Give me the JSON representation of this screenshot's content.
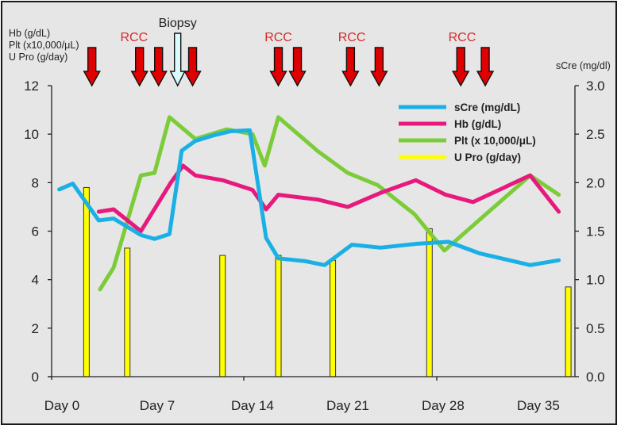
{
  "chart_data": {
    "type": "line",
    "title": "",
    "left_axis": {
      "label_lines": [
        "Hb (g/dL)",
        "Plt  (x10,000/μL)",
        "U Pro (g/day)"
      ],
      "ticks": [
        0,
        2,
        4,
        6,
        8,
        10,
        12
      ],
      "ylim": [
        0,
        12
      ]
    },
    "right_axis": {
      "label": "sCre (mg/dl)",
      "ticks": [
        "0.0",
        "0.5",
        "1.0",
        "1.5",
        "2.0",
        "2.5",
        "3.0"
      ],
      "ylim": [
        0,
        3.0
      ]
    },
    "x_axis": {
      "tick_labels": [
        "Day 0",
        "Day 7",
        "Day 14",
        "Day 21",
        "Day 28",
        "Day 35"
      ],
      "tick_days": [
        0,
        7,
        14,
        21,
        28,
        35
      ],
      "xlim": [
        -0.8,
        37.5
      ]
    },
    "legend": [
      {
        "name": "sCre  (mg/dL)",
        "color": "#1ab0e6"
      },
      {
        "name": "Hb  (g/dL)",
        "color": "#e8197c"
      },
      {
        "name": "Plt   (x 10,000/μL)",
        "color": "#7ccc3a"
      },
      {
        "name": "U Pro (g/day)",
        "color": "#ffff00"
      }
    ],
    "series": [
      {
        "name": "sCre (mg/dL)",
        "axis": "right",
        "color": "#1ab0e6",
        "points": [
          [
            -0.2,
            1.93
          ],
          [
            0.8,
            1.99
          ],
          [
            2.7,
            1.61
          ],
          [
            3.8,
            1.63
          ],
          [
            5.8,
            1.46
          ],
          [
            6.8,
            1.42
          ],
          [
            7.9,
            1.47
          ],
          [
            8.8,
            2.33
          ],
          [
            9.8,
            2.43
          ],
          [
            11.2,
            2.49
          ],
          [
            12.4,
            2.53
          ],
          [
            13.8,
            2.54
          ],
          [
            15.0,
            1.43
          ],
          [
            15.9,
            1.22
          ],
          [
            17.9,
            1.19
          ],
          [
            19.3,
            1.15
          ],
          [
            21.3,
            1.36
          ],
          [
            23.4,
            1.33
          ],
          [
            26.1,
            1.37
          ],
          [
            28.4,
            1.39
          ],
          [
            30.7,
            1.27
          ],
          [
            34.4,
            1.15
          ],
          [
            36.5,
            1.2
          ]
        ]
      },
      {
        "name": "Hb (g/dL)",
        "axis": "left",
        "color": "#e8197c",
        "points": [
          [
            2.7,
            6.8
          ],
          [
            3.8,
            6.9
          ],
          [
            5.8,
            6.0
          ],
          [
            8.0,
            8.0
          ],
          [
            8.9,
            8.7
          ],
          [
            9.8,
            8.3
          ],
          [
            11.8,
            8.1
          ],
          [
            14.0,
            7.7
          ],
          [
            15.0,
            6.9
          ],
          [
            15.9,
            7.5
          ],
          [
            18.8,
            7.3
          ],
          [
            21.0,
            7.0
          ],
          [
            23.5,
            7.6
          ],
          [
            26.0,
            8.1
          ],
          [
            28.2,
            7.5
          ],
          [
            30.2,
            7.2
          ],
          [
            34.4,
            8.3
          ],
          [
            36.5,
            6.8
          ]
        ]
      },
      {
        "name": "Plt (x 10,000/μL)",
        "axis": "left",
        "color": "#7ccc3a",
        "points": [
          [
            2.8,
            3.6
          ],
          [
            3.8,
            4.5
          ],
          [
            5.8,
            8.3
          ],
          [
            6.8,
            8.4
          ],
          [
            7.9,
            10.7
          ],
          [
            9.8,
            9.8
          ],
          [
            12.1,
            10.2
          ],
          [
            14.0,
            10.0
          ],
          [
            14.9,
            8.7
          ],
          [
            15.9,
            10.7
          ],
          [
            18.8,
            9.3
          ],
          [
            21.0,
            8.4
          ],
          [
            23.2,
            7.9
          ],
          [
            25.9,
            6.7
          ],
          [
            28.1,
            5.2
          ],
          [
            34.4,
            8.3
          ],
          [
            36.5,
            7.5
          ]
        ]
      },
      {
        "name": "U Pro (g/day)",
        "axis": "left",
        "type": "bar",
        "color": "#ffff00",
        "points": [
          [
            1.8,
            7.8
          ],
          [
            4.8,
            5.3
          ],
          [
            11.8,
            5.0
          ],
          [
            15.9,
            5.0
          ],
          [
            19.9,
            4.8
          ],
          [
            27.0,
            6.1
          ],
          [
            37.2,
            3.7
          ]
        ]
      }
    ],
    "annotations": {
      "arrows": [
        {
          "day": 2.2,
          "type": "RCC"
        },
        {
          "day": 5.7,
          "type": "RCC"
        },
        {
          "day": 7.1,
          "type": "RCC"
        },
        {
          "day": 8.5,
          "type": "Biopsy"
        },
        {
          "day": 9.6,
          "type": "RCC"
        },
        {
          "day": 15.9,
          "type": "RCC"
        },
        {
          "day": 17.3,
          "type": "RCC"
        },
        {
          "day": 21.2,
          "type": "RCC"
        },
        {
          "day": 23.3,
          "type": "RCC"
        },
        {
          "day": 29.3,
          "type": "RCC"
        },
        {
          "day": 31.1,
          "type": "RCC"
        }
      ],
      "labels": [
        {
          "text": "RCC",
          "day": 5.3
        },
        {
          "text": "Biopsy",
          "day": 8.5
        },
        {
          "text": "RCC",
          "day": 15.9
        },
        {
          "text": "RCC",
          "day": 21.3
        },
        {
          "text": "RCC",
          "day": 29.4
        }
      ]
    },
    "grid": false,
    "legend_position": "upper right inside"
  }
}
